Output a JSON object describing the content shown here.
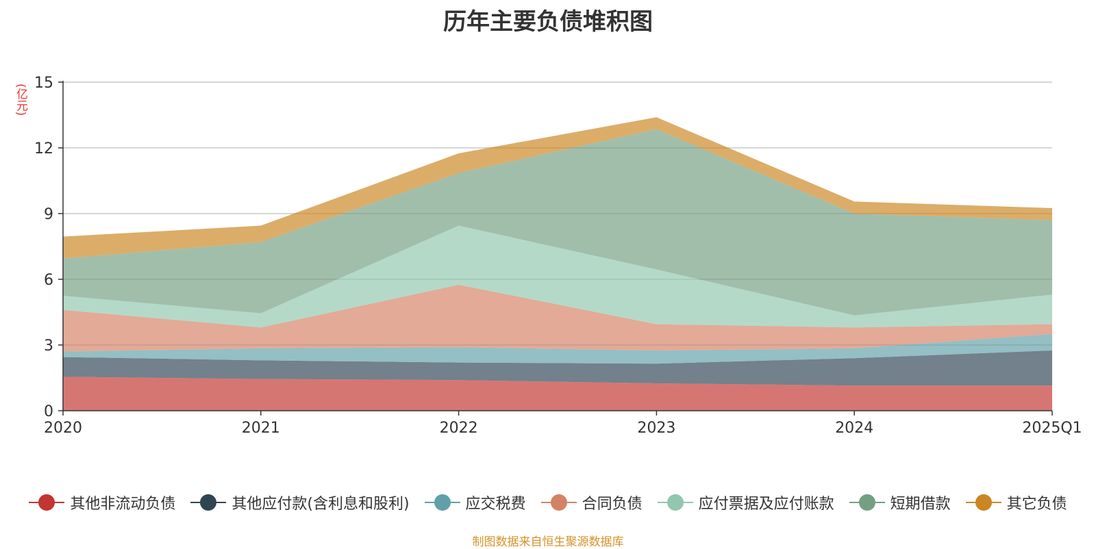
{
  "chart_data": {
    "type": "area",
    "stacked": true,
    "title": "历年主要负债堆积图",
    "ylabel": "(亿元)",
    "xlabel": "",
    "categories": [
      "2020",
      "2021",
      "2022",
      "2023",
      "2024",
      "2025Q1"
    ],
    "ylim": [
      0,
      15
    ],
    "yticks": [
      0,
      3,
      6,
      9,
      12,
      15
    ],
    "grid": true,
    "legend_position": "bottom",
    "series": [
      {
        "name": "其他非流动负债",
        "color": "#c23531",
        "values": [
          1.55,
          1.45,
          1.4,
          1.25,
          1.15,
          1.15
        ]
      },
      {
        "name": "其他应付款(含利息和股利)",
        "color": "#2f4554",
        "values": [
          0.9,
          0.85,
          0.8,
          0.9,
          1.25,
          1.6
        ]
      },
      {
        "name": "应交税费",
        "color": "#61a0a8",
        "values": [
          0.25,
          0.55,
          0.7,
          0.6,
          0.45,
          0.75
        ]
      },
      {
        "name": "合同负债",
        "color": "#d48265",
        "values": [
          1.9,
          0.95,
          2.85,
          1.2,
          0.95,
          0.45
        ]
      },
      {
        "name": "应付票据及应付账款",
        "color": "#91c7ae",
        "values": [
          0.65,
          0.65,
          2.7,
          2.5,
          0.55,
          1.35
        ]
      },
      {
        "name": "短期借款",
        "color": "#749f83",
        "values": [
          1.7,
          3.25,
          2.4,
          6.4,
          4.65,
          3.4
        ]
      },
      {
        "name": "其它负债",
        "color": "#ca8622",
        "values": [
          1.0,
          0.75,
          0.9,
          0.55,
          0.55,
          0.55
        ]
      }
    ]
  },
  "source_note": "制图数据来自恒生聚源数据库"
}
